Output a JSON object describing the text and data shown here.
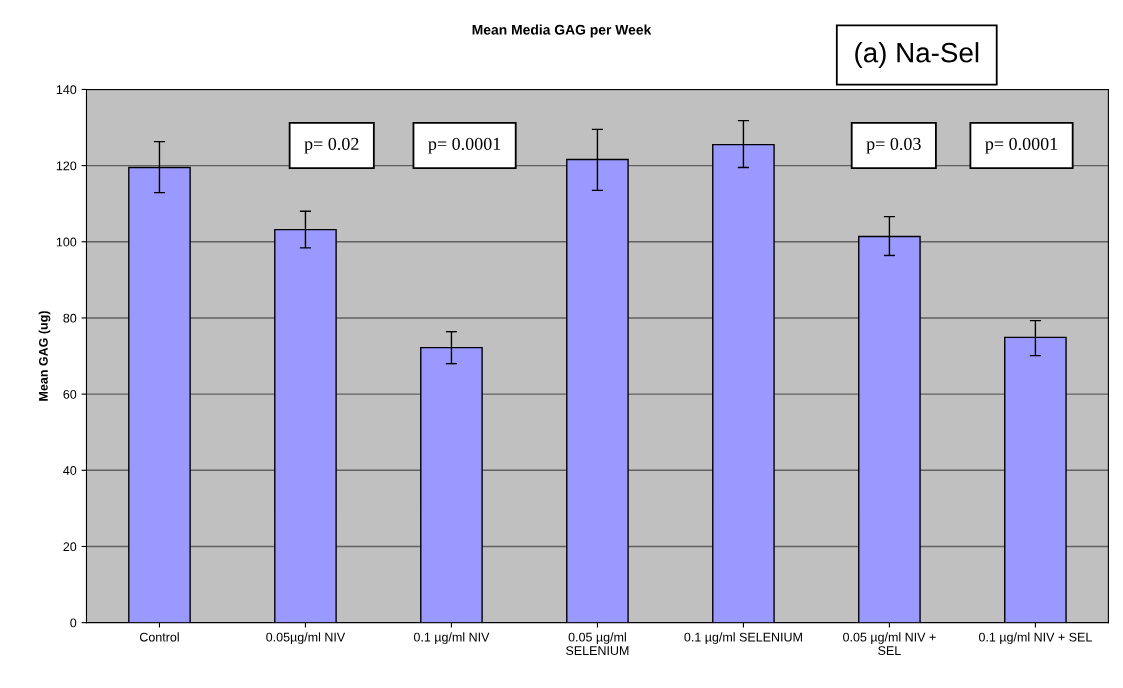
{
  "chart_data": {
    "type": "bar",
    "title": "Mean Media GAG per Week",
    "ylabel": "Mean GAG (ug)",
    "categories": [
      "Control",
      "0.05µg/ml NIV",
      "0.1 µg/ml NIV",
      "0.05 µg/ml\nSELENIUM",
      "0.1 µg/ml SELENIUM",
      "0.05 µg/ml NIV +\nSEL",
      "0.1 µg/ml NIV + SEL"
    ],
    "series": [
      {
        "color": "#9999ff",
        "values": [
          119.5,
          103.2,
          72.2,
          121.6,
          125.5,
          101.4,
          74.9
        ],
        "errors": [
          [
            112.9,
            126.3
          ],
          [
            98.4,
            108
          ],
          [
            68,
            76.4
          ],
          [
            113.5,
            129.5
          ],
          [
            119.5,
            131.8
          ],
          [
            96.4,
            106.6
          ],
          [
            70.1,
            79.3
          ]
        ]
      }
    ],
    "ylim": [
      0,
      140
    ],
    "yticks": [
      0,
      20,
      40,
      60,
      80,
      100,
      120,
      140
    ],
    "grid": "y",
    "legend": false,
    "annotations": [
      "(a) Na-Sel",
      "p= 0.02",
      "p= 0.0001",
      "p= 0.03",
      "p= 0.0001"
    ]
  }
}
